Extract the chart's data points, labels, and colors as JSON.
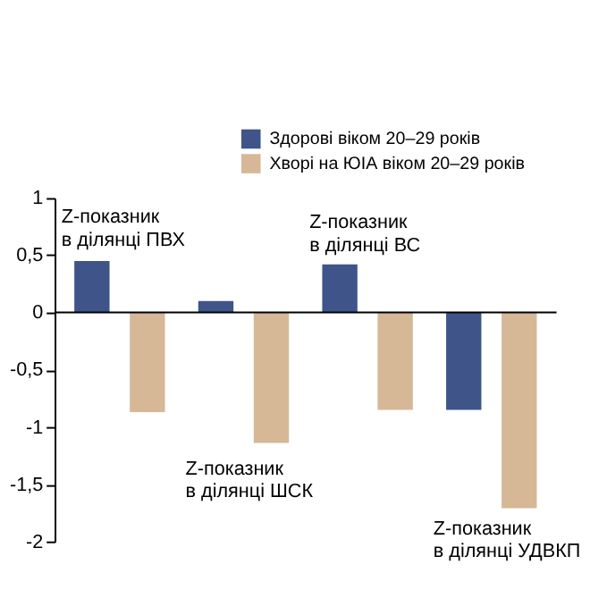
{
  "chart_data": {
    "type": "bar",
    "categories": [
      null,
      null,
      null,
      null
    ],
    "series": [
      {
        "name": "Здорові віком 20–29 років",
        "color": "#3f5489",
        "values": [
          0.45,
          0.1,
          0.42,
          -0.85
        ]
      },
      {
        "name": "Хворі на ЮІА віком 20–29 років",
        "color": "#d6b897",
        "values": [
          -0.87,
          -1.14,
          -0.85,
          -1.71
        ]
      }
    ],
    "ylim": [
      -2,
      1
    ],
    "yticks": [
      {
        "value": -2,
        "label": "-2"
      },
      {
        "value": -1.5,
        "label": "-1,5"
      },
      {
        "value": -1,
        "label": "-1"
      },
      {
        "value": -0.5,
        "label": "-0,5"
      },
      {
        "value": 0,
        "label": "0"
      },
      {
        "value": 0.5,
        "label": "0,5"
      },
      {
        "value": 1,
        "label": "1"
      }
    ],
    "annotations": [
      "Z-показник\nв ділянці ПВХ",
      "Z-показник\nв ділянці ШСК",
      "Z-показник\nв ділянці ВС",
      "Z-показник\nв ділянці УДВКП"
    ],
    "legend": "top right"
  }
}
